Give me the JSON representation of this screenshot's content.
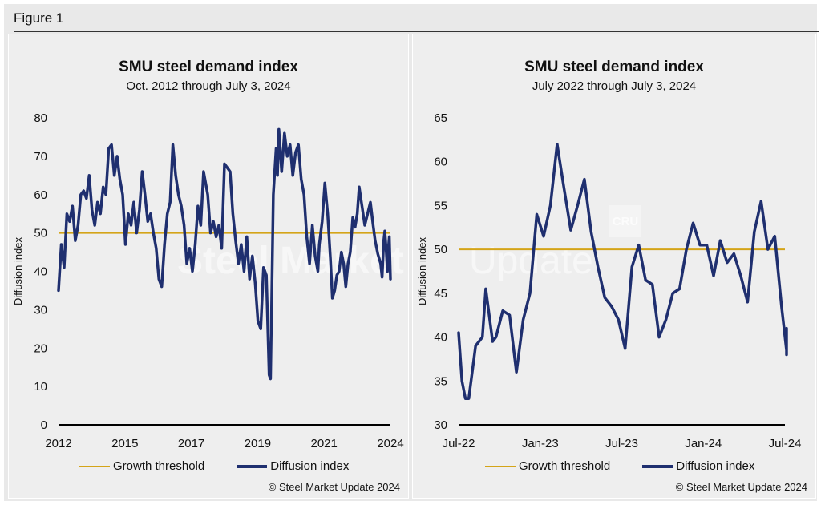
{
  "figure_label": "Figure 1",
  "colors": {
    "threshold": "#D4A418",
    "series": "#1F2F6F",
    "panel_bg": "#eeeeee"
  },
  "watermark": {
    "text_left": "Steel Market",
    "text_right": "Update",
    "logo_text": "CRU"
  },
  "chart_data": [
    {
      "type": "line",
      "title": "SMU steel demand index",
      "subtitle": "Oct. 2012 through July 3, 2024",
      "ylabel": "Diffusion index",
      "xlabel": "",
      "xlim": [
        2012.7,
        2024.6
      ],
      "ylim": [
        0,
        80
      ],
      "yticks": [
        0,
        10,
        20,
        30,
        40,
        50,
        60,
        70,
        80
      ],
      "xtick_labels": [
        "2012",
        "2015",
        "2017",
        "2019",
        "2021",
        "2024"
      ],
      "grid": false,
      "legend_placement": "bottom",
      "threshold": {
        "name": "Growth threshold",
        "value": 50
      },
      "series": [
        {
          "name": "Diffusion index",
          "points": [
            [
              2012.7,
              35
            ],
            [
              2012.8,
              47
            ],
            [
              2012.9,
              41
            ],
            [
              2013.0,
              55
            ],
            [
              2013.1,
              53
            ],
            [
              2013.2,
              57
            ],
            [
              2013.3,
              48
            ],
            [
              2013.4,
              52
            ],
            [
              2013.5,
              60
            ],
            [
              2013.6,
              61
            ],
            [
              2013.7,
              59
            ],
            [
              2013.8,
              65
            ],
            [
              2013.9,
              56
            ],
            [
              2014.0,
              52
            ],
            [
              2014.1,
              58
            ],
            [
              2014.2,
              55
            ],
            [
              2014.3,
              62
            ],
            [
              2014.4,
              60
            ],
            [
              2014.5,
              72
            ],
            [
              2014.6,
              73
            ],
            [
              2014.7,
              65
            ],
            [
              2014.8,
              70
            ],
            [
              2014.9,
              64
            ],
            [
              2015.0,
              60
            ],
            [
              2015.1,
              47
            ],
            [
              2015.2,
              55
            ],
            [
              2015.3,
              52
            ],
            [
              2015.4,
              58
            ],
            [
              2015.5,
              50
            ],
            [
              2015.6,
              56
            ],
            [
              2015.7,
              66
            ],
            [
              2015.8,
              60
            ],
            [
              2015.9,
              53
            ],
            [
              2016.0,
              55
            ],
            [
              2016.1,
              50
            ],
            [
              2016.2,
              46
            ],
            [
              2016.3,
              38
            ],
            [
              2016.4,
              36
            ],
            [
              2016.5,
              47
            ],
            [
              2016.6,
              55
            ],
            [
              2016.7,
              58
            ],
            [
              2016.8,
              73
            ],
            [
              2016.9,
              65
            ],
            [
              2017.0,
              60
            ],
            [
              2017.1,
              57
            ],
            [
              2017.2,
              52
            ],
            [
              2017.3,
              42
            ],
            [
              2017.4,
              46
            ],
            [
              2017.5,
              40
            ],
            [
              2017.6,
              47
            ],
            [
              2017.7,
              57
            ],
            [
              2017.8,
              52
            ],
            [
              2017.9,
              66
            ],
            [
              2017.95,
              64
            ],
            [
              2018.05,
              60
            ],
            [
              2018.15,
              50
            ],
            [
              2018.25,
              53
            ],
            [
              2018.35,
              49
            ],
            [
              2018.45,
              52
            ],
            [
              2018.55,
              46
            ],
            [
              2018.65,
              68
            ],
            [
              2018.75,
              67
            ],
            [
              2018.85,
              66
            ],
            [
              2018.95,
              55
            ],
            [
              2019.05,
              48
            ],
            [
              2019.15,
              42
            ],
            [
              2019.25,
              47
            ],
            [
              2019.35,
              40
            ],
            [
              2019.45,
              49
            ],
            [
              2019.55,
              38
            ],
            [
              2019.65,
              44
            ],
            [
              2019.75,
              37
            ],
            [
              2019.85,
              27
            ],
            [
              2019.95,
              25
            ],
            [
              2020.05,
              41
            ],
            [
              2020.15,
              39
            ],
            [
              2020.25,
              13
            ],
            [
              2020.3,
              12
            ],
            [
              2020.4,
              60
            ],
            [
              2020.5,
              72
            ],
            [
              2020.55,
              65
            ],
            [
              2020.6,
              77
            ],
            [
              2020.7,
              66
            ],
            [
              2020.8,
              76
            ],
            [
              2020.9,
              70
            ],
            [
              2021.0,
              73
            ],
            [
              2021.1,
              65
            ],
            [
              2021.2,
              71
            ],
            [
              2021.3,
              73
            ],
            [
              2021.4,
              64
            ],
            [
              2021.5,
              60
            ],
            [
              2021.6,
              49
            ],
            [
              2021.7,
              42
            ],
            [
              2021.8,
              52
            ],
            [
              2021.9,
              44
            ],
            [
              2022.0,
              40
            ],
            [
              2022.05,
              47
            ],
            [
              2022.15,
              53
            ],
            [
              2022.25,
              63
            ],
            [
              2022.35,
              55
            ],
            [
              2022.45,
              43
            ],
            [
              2022.52,
              33
            ],
            [
              2022.6,
              35
            ],
            [
              2022.68,
              39
            ],
            [
              2022.76,
              40
            ],
            [
              2022.84,
              45
            ],
            [
              2022.92,
              42
            ],
            [
              2023.0,
              36
            ],
            [
              2023.08,
              42
            ],
            [
              2023.16,
              45
            ],
            [
              2023.25,
              54
            ],
            [
              2023.33,
              51.5
            ],
            [
              2023.41,
              55
            ],
            [
              2023.48,
              62
            ],
            [
              2023.58,
              57
            ],
            [
              2023.68,
              52
            ],
            [
              2023.78,
              55
            ],
            [
              2023.88,
              58
            ],
            [
              2023.98,
              52
            ],
            [
              2024.05,
              48
            ],
            [
              2024.15,
              44.5
            ],
            [
              2024.25,
              42
            ],
            [
              2024.3,
              38.5
            ],
            [
              2024.36,
              48
            ],
            [
              2024.4,
              50.5
            ],
            [
              2024.44,
              46.5
            ],
            [
              2024.49,
              40
            ],
            [
              2024.52,
              45.5
            ],
            [
              2024.56,
              49
            ],
            [
              2024.6,
              38
            ]
          ]
        }
      ]
    },
    {
      "type": "line",
      "title": "SMU steel demand index",
      "subtitle": "July 2022 through July 3, 2024",
      "ylabel": "Diffusion index",
      "xlabel": "",
      "xlim": [
        0,
        24
      ],
      "ylim": [
        30,
        65
      ],
      "yticks": [
        30,
        35,
        40,
        45,
        50,
        55,
        60,
        65
      ],
      "xticks": [
        {
          "x": 0,
          "label": "Jul-22"
        },
        {
          "x": 6,
          "label": "Jan-23"
        },
        {
          "x": 12,
          "label": "Jul-23"
        },
        {
          "x": 18,
          "label": "Jan-24"
        },
        {
          "x": 24,
          "label": "Jul-24"
        }
      ],
      "grid": false,
      "legend_placement": "bottom",
      "threshold": {
        "name": "Growth threshold",
        "value": 50
      },
      "series": [
        {
          "name": "Diffusion index",
          "points": [
            [
              0.0,
              40.5
            ],
            [
              0.25,
              35
            ],
            [
              0.5,
              33
            ],
            [
              0.75,
              33
            ],
            [
              1.25,
              39
            ],
            [
              1.75,
              40
            ],
            [
              2.0,
              45.5
            ],
            [
              2.5,
              39.5
            ],
            [
              2.75,
              40
            ],
            [
              3.25,
              43
            ],
            [
              3.75,
              42.5
            ],
            [
              4.25,
              36
            ],
            [
              4.75,
              42
            ],
            [
              5.25,
              45
            ],
            [
              5.75,
              54
            ],
            [
              6.25,
              51.5
            ],
            [
              6.75,
              55
            ],
            [
              7.25,
              62
            ],
            [
              7.75,
              57
            ],
            [
              8.25,
              52.2
            ],
            [
              8.75,
              55
            ],
            [
              9.25,
              58
            ],
            [
              9.75,
              52
            ],
            [
              10.25,
              48
            ],
            [
              10.75,
              44.5
            ],
            [
              11.25,
              43.5
            ],
            [
              11.75,
              42
            ],
            [
              12.25,
              38.7
            ],
            [
              12.75,
              48
            ],
            [
              13.25,
              50.5
            ],
            [
              13.75,
              46.5
            ],
            [
              14.25,
              46
            ],
            [
              14.75,
              40
            ],
            [
              15.25,
              42
            ],
            [
              15.75,
              45
            ],
            [
              16.25,
              45.5
            ],
            [
              16.75,
              50
            ],
            [
              17.25,
              53
            ],
            [
              17.75,
              50.5
            ],
            [
              18.25,
              50.5
            ],
            [
              18.75,
              47
            ],
            [
              19.25,
              51
            ],
            [
              19.75,
              48.5
            ],
            [
              20.25,
              49.5
            ],
            [
              20.75,
              47
            ],
            [
              21.25,
              44
            ],
            [
              21.75,
              52
            ],
            [
              22.25,
              55.5
            ],
            [
              22.75,
              50
            ],
            [
              23.25,
              51.5
            ],
            [
              23.75,
              43.5
            ],
            [
              24.25,
              38.5
            ],
            [
              24.75,
              41
            ],
            [
              25.25,
              38.5
            ],
            [
              25.75,
              38
            ]
          ]
        }
      ]
    }
  ],
  "copyright": "© Steel Market Update 2024"
}
